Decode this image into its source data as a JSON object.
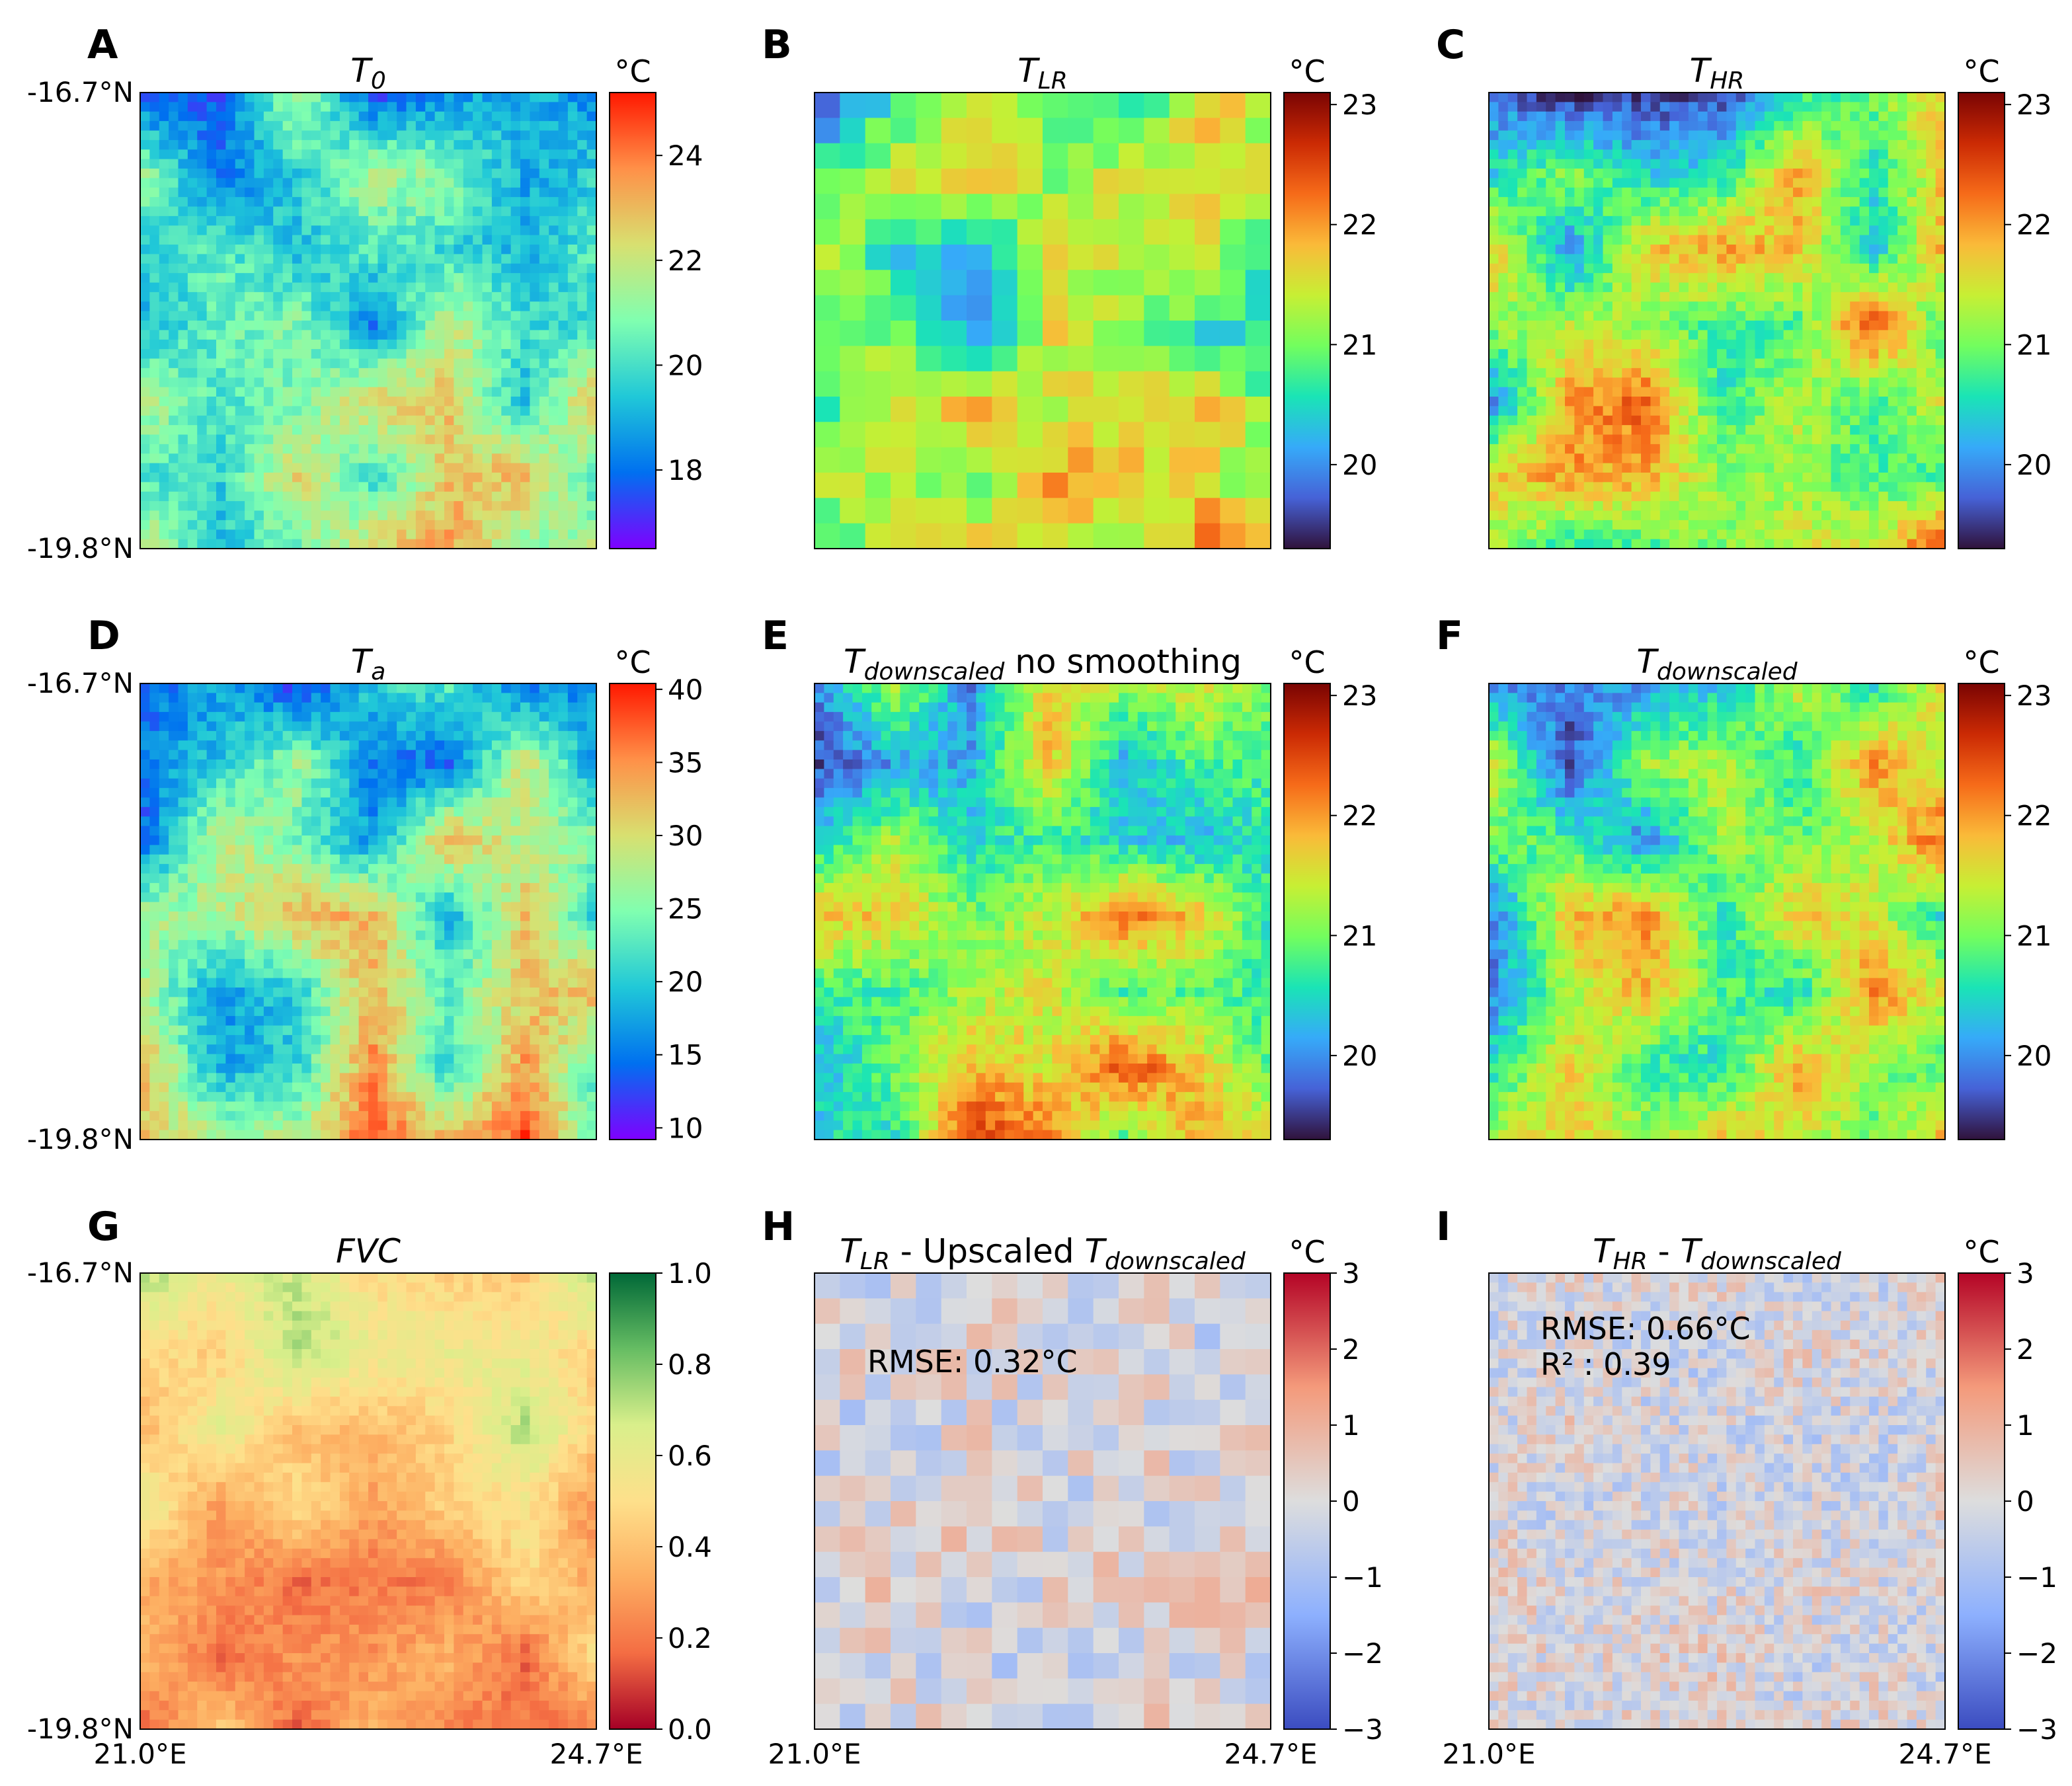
{
  "chart_data": [
    {
      "panel": "A",
      "type": "heatmap",
      "title_main": "T",
      "title_sub": "0",
      "cmap": "rainbow",
      "unit": "°C",
      "colorbar_ticks": [
        "18",
        "20",
        "22",
        "24"
      ],
      "colorbar_range": [
        16.5,
        25.2
      ],
      "colors": [
        "#7f00ff",
        "#0070f0",
        "#20c8d8",
        "#80ffb0",
        "#d8e070",
        "#ff9048",
        "#ff1800"
      ],
      "lat_labels": [
        "-16.7°N",
        "-19.8°N"
      ],
      "lon_labels": []
    },
    {
      "panel": "B",
      "type": "heatmap",
      "title_main": "T",
      "title_sub": "LR",
      "cmap": "turbo",
      "unit": "°C",
      "colorbar_ticks": [
        "20",
        "21",
        "22",
        "23"
      ],
      "colorbar_range": [
        19.3,
        23.1
      ],
      "colors": [
        "#30123b",
        "#4662d7",
        "#36aaf9",
        "#1ae4b6",
        "#72fe5e",
        "#c7ef34",
        "#faba39",
        "#f66b19",
        "#cb2a04",
        "#7a0403"
      ],
      "lat_labels": [],
      "lon_labels": []
    },
    {
      "panel": "C",
      "type": "heatmap",
      "title_main": "T",
      "title_sub": "HR",
      "cmap": "turbo",
      "unit": "°C",
      "colorbar_ticks": [
        "20",
        "21",
        "22",
        "23"
      ],
      "colorbar_range": [
        19.3,
        23.1
      ],
      "colors": [
        "#30123b",
        "#4662d7",
        "#36aaf9",
        "#1ae4b6",
        "#72fe5e",
        "#c7ef34",
        "#faba39",
        "#f66b19",
        "#cb2a04",
        "#7a0403"
      ],
      "lat_labels": [],
      "lon_labels": []
    },
    {
      "panel": "D",
      "type": "heatmap",
      "title_main": "T",
      "title_sub": "a",
      "cmap": "rainbow",
      "unit": "°C",
      "colorbar_ticks": [
        "10",
        "15",
        "20",
        "25",
        "30",
        "35",
        "40"
      ],
      "colorbar_range": [
        9.2,
        40.4
      ],
      "colors": [
        "#7f00ff",
        "#0070f0",
        "#20c8d8",
        "#80ffb0",
        "#d8e070",
        "#ff9048",
        "#ff1800"
      ],
      "lat_labels": [
        "-16.7°N",
        "-19.8°N"
      ],
      "lon_labels": []
    },
    {
      "panel": "E",
      "type": "heatmap",
      "title_main": "T",
      "title_sub": "downscaled",
      "title_suffix": " no smoothing",
      "cmap": "turbo",
      "unit": "°C",
      "colorbar_ticks": [
        "20",
        "21",
        "22",
        "23"
      ],
      "colorbar_range": [
        19.3,
        23.1
      ],
      "colors": [
        "#30123b",
        "#4662d7",
        "#36aaf9",
        "#1ae4b6",
        "#72fe5e",
        "#c7ef34",
        "#faba39",
        "#f66b19",
        "#cb2a04",
        "#7a0403"
      ],
      "lat_labels": [],
      "lon_labels": []
    },
    {
      "panel": "F",
      "type": "heatmap",
      "title_main": "T",
      "title_sub": "downscaled",
      "cmap": "turbo",
      "unit": "°C",
      "colorbar_ticks": [
        "20",
        "21",
        "22",
        "23"
      ],
      "colorbar_range": [
        19.3,
        23.1
      ],
      "colors": [
        "#30123b",
        "#4662d7",
        "#36aaf9",
        "#1ae4b6",
        "#72fe5e",
        "#c7ef34",
        "#faba39",
        "#f66b19",
        "#cb2a04",
        "#7a0403"
      ],
      "lat_labels": [],
      "lon_labels": []
    },
    {
      "panel": "G",
      "type": "heatmap",
      "title_main": "FVC",
      "cmap": "RdYlGn",
      "unit": "",
      "colorbar_ticks": [
        "0.0",
        "0.2",
        "0.4",
        "0.6",
        "0.8",
        "1.0"
      ],
      "colorbar_range": [
        0,
        1
      ],
      "colors": [
        "#a50026",
        "#f46d43",
        "#fdae61",
        "#fee08b",
        "#d9ef8b",
        "#66bd63",
        "#006837"
      ],
      "lat_labels": [
        "-16.7°N",
        "-19.8°N"
      ],
      "lon_labels": [
        "21.0°E",
        "24.7°E"
      ]
    },
    {
      "panel": "H",
      "type": "heatmap",
      "title_main": "T",
      "title_sub": "LR",
      "title_mid": " - Upscaled ",
      "title_main2": "T",
      "title_sub2": "downscaled",
      "cmap": "coolwarm",
      "unit": "°C",
      "colorbar_ticks": [
        "−3",
        "−2",
        "−1",
        "0",
        "1",
        "2",
        "3"
      ],
      "colorbar_range": [
        -3,
        3
      ],
      "colors": [
        "#3b4cc0",
        "#8db0fe",
        "#dddddd",
        "#f49a7b",
        "#b40426"
      ],
      "annotations": [
        "RMSE: 0.32°C"
      ],
      "lat_labels": [],
      "lon_labels": [
        "21.0°E",
        "24.7°E"
      ]
    },
    {
      "panel": "I",
      "type": "heatmap",
      "title_main": "T",
      "title_sub": "HR",
      "title_mid": " - ",
      "title_main2": "T",
      "title_sub2": "downscaled",
      "cmap": "coolwarm",
      "unit": "°C",
      "colorbar_ticks": [
        "−3",
        "−2",
        "−1",
        "0",
        "1",
        "2",
        "3"
      ],
      "colorbar_range": [
        -3,
        3
      ],
      "colors": [
        "#3b4cc0",
        "#8db0fe",
        "#dddddd",
        "#f49a7b",
        "#b40426"
      ],
      "annotations": [
        "RMSE: 0.66°C",
        "R² : 0.39"
      ],
      "lat_labels": [],
      "lon_labels": [
        "21.0°E",
        "24.7°E"
      ]
    }
  ]
}
